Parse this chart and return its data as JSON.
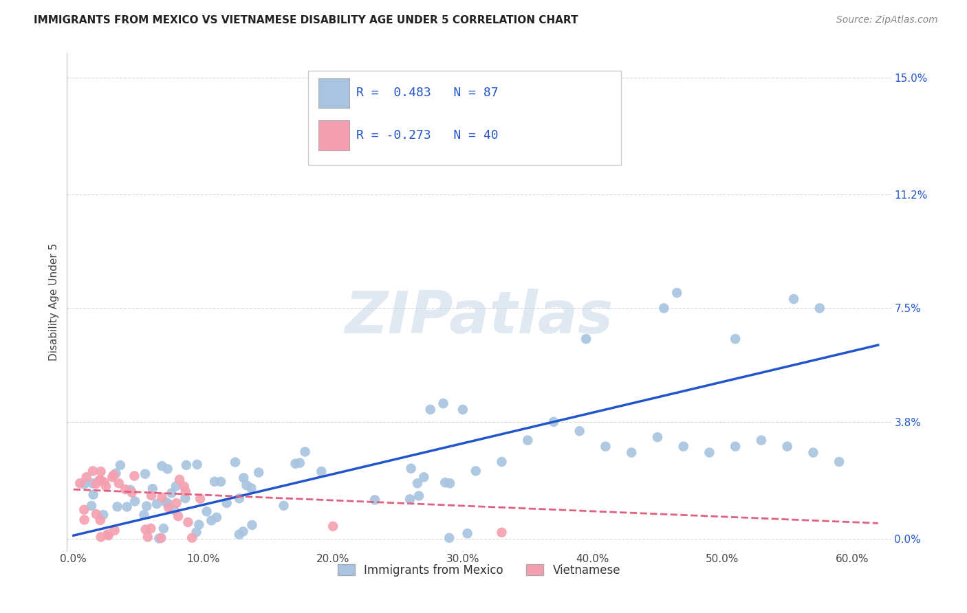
{
  "title": "IMMIGRANTS FROM MEXICO VS VIETNAMESE DISABILITY AGE UNDER 5 CORRELATION CHART",
  "source": "Source: ZipAtlas.com",
  "ylabel": "Disability Age Under 5",
  "xlabel_ticks": [
    "0.0%",
    "10.0%",
    "20.0%",
    "30.0%",
    "40.0%",
    "50.0%",
    "60.0%"
  ],
  "xlabel_vals": [
    0.0,
    0.1,
    0.2,
    0.3,
    0.4,
    0.5,
    0.6
  ],
  "ytick_labels": [
    "0.0%",
    "3.8%",
    "7.5%",
    "11.2%",
    "15.0%"
  ],
  "ytick_vals": [
    0.0,
    0.038,
    0.075,
    0.112,
    0.15
  ],
  "xlim": [
    -0.005,
    0.63
  ],
  "ylim": [
    -0.004,
    0.158
  ],
  "legend_label1": "Immigrants from Mexico",
  "legend_label2": "Vietnamese",
  "R1": 0.483,
  "N1": 87,
  "R2": -0.273,
  "N2": 40,
  "color_blue": "#a8c4e0",
  "color_pink": "#f4a0b0",
  "trendline_blue": "#2255cc",
  "trendline_pink": "#e06080",
  "blue_trend_x0": 0.0,
  "blue_trend_y0": 0.001,
  "blue_trend_x1": 0.62,
  "blue_trend_y1": 0.063,
  "pink_trend_x0": 0.0,
  "pink_trend_y0": 0.016,
  "pink_trend_x1": 0.62,
  "pink_trend_y1": 0.005,
  "watermark": "ZIPatlas",
  "background_color": "#ffffff",
  "grid_color": "#cccccc",
  "title_fontsize": 11,
  "source_fontsize": 10,
  "tick_fontsize": 11,
  "ylabel_fontsize": 11
}
